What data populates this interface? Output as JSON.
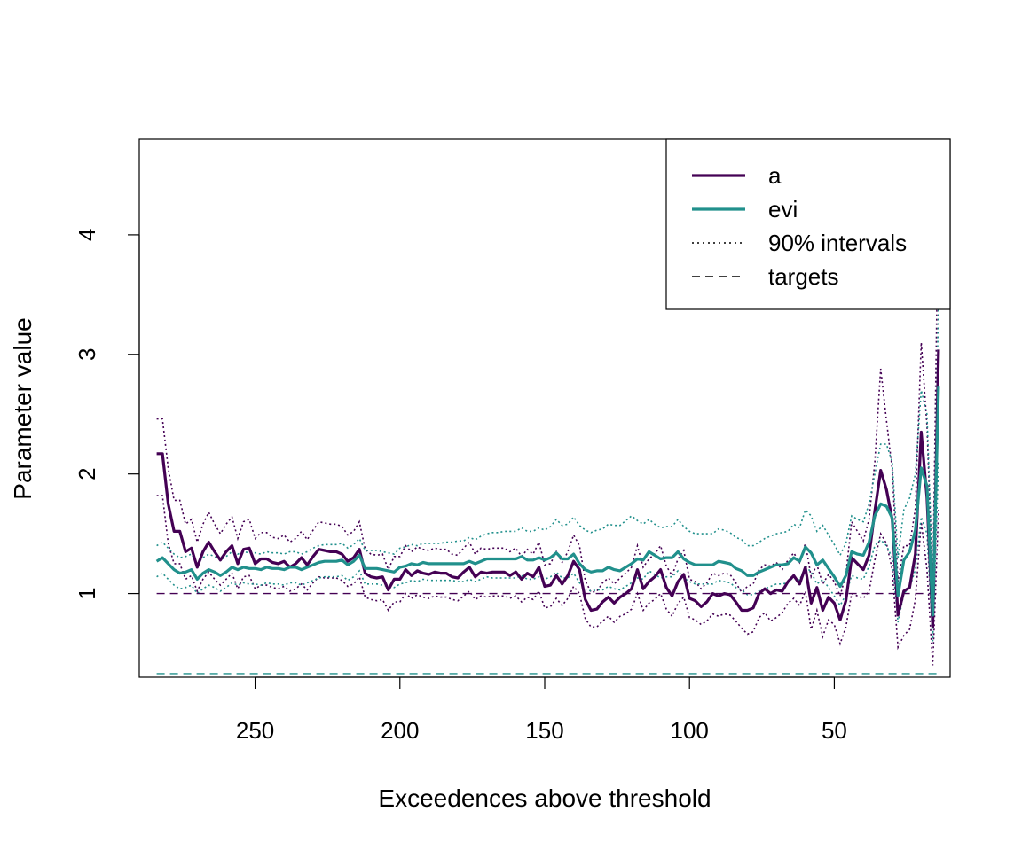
{
  "chart_data": {
    "type": "line",
    "title": "",
    "xlabel": "Exceedences above threshold",
    "ylabel": "Parameter value",
    "xlim": [
      290,
      10
    ],
    "ylim": [
      0.3,
      4.8
    ],
    "x_ticks": [
      250,
      200,
      150,
      100,
      50
    ],
    "y_ticks": [
      1,
      2,
      3,
      4
    ],
    "x": [
      284,
      282,
      280,
      278,
      276,
      274,
      272,
      270,
      268,
      266,
      264,
      262,
      260,
      258,
      256,
      254,
      252,
      250,
      248,
      246,
      244,
      242,
      240,
      238,
      236,
      234,
      232,
      230,
      228,
      226,
      224,
      222,
      220,
      218,
      216,
      214,
      212,
      210,
      208,
      206,
      204,
      202,
      200,
      198,
      196,
      194,
      192,
      190,
      188,
      186,
      184,
      182,
      180,
      178,
      176,
      174,
      172,
      170,
      168,
      166,
      164,
      162,
      160,
      158,
      156,
      154,
      152,
      150,
      148,
      146,
      144,
      142,
      140,
      138,
      136,
      134,
      132,
      130,
      128,
      126,
      124,
      122,
      120,
      118,
      116,
      114,
      112,
      110,
      108,
      106,
      104,
      102,
      100,
      98,
      96,
      94,
      92,
      90,
      88,
      86,
      84,
      82,
      80,
      78,
      76,
      74,
      72,
      70,
      68,
      66,
      64,
      62,
      60,
      58,
      56,
      54,
      52,
      50,
      48,
      46,
      44,
      42,
      40,
      38,
      36,
      34,
      32,
      30,
      28,
      26,
      24,
      22,
      20,
      18,
      16,
      14
    ],
    "series": [
      {
        "name": "a",
        "color": "#440154",
        "style": "solid",
        "values": [
          2.17,
          2.17,
          1.75,
          1.52,
          1.52,
          1.35,
          1.38,
          1.22,
          1.35,
          1.43,
          1.35,
          1.28,
          1.35,
          1.4,
          1.25,
          1.37,
          1.38,
          1.25,
          1.29,
          1.29,
          1.26,
          1.25,
          1.27,
          1.22,
          1.25,
          1.3,
          1.24,
          1.31,
          1.37,
          1.36,
          1.35,
          1.35,
          1.33,
          1.27,
          1.3,
          1.37,
          1.17,
          1.14,
          1.13,
          1.14,
          1.03,
          1.12,
          1.12,
          1.2,
          1.15,
          1.19,
          1.17,
          1.16,
          1.18,
          1.17,
          1.17,
          1.14,
          1.13,
          1.18,
          1.22,
          1.14,
          1.18,
          1.17,
          1.18,
          1.18,
          1.18,
          1.15,
          1.18,
          1.12,
          1.17,
          1.14,
          1.22,
          1.06,
          1.07,
          1.15,
          1.08,
          1.15,
          1.27,
          1.2,
          0.95,
          0.86,
          0.87,
          0.93,
          0.97,
          0.92,
          0.97,
          1.0,
          1.04,
          1.2,
          1.04,
          1.1,
          1.14,
          1.2,
          1.05,
          0.98,
          1.1,
          1.16,
          0.96,
          0.94,
          0.89,
          0.93,
          1.0,
          0.98,
          1.0,
          0.99,
          0.93,
          0.86,
          0.86,
          0.88,
          1.0,
          1.04,
          1.0,
          1.03,
          1.02,
          1.1,
          1.15,
          1.08,
          1.22,
          0.92,
          1.05,
          0.86,
          0.97,
          0.92,
          0.78,
          0.94,
          1.3,
          1.25,
          1.2,
          1.32,
          1.69,
          2.03,
          1.87,
          1.62,
          0.82,
          1.02,
          1.05,
          1.33,
          2.35,
          1.8,
          0.72,
          3.04
        ]
      },
      {
        "name": "evi",
        "color": "#21908C",
        "style": "solid",
        "values": [
          1.27,
          1.3,
          1.25,
          1.2,
          1.17,
          1.18,
          1.2,
          1.12,
          1.17,
          1.2,
          1.18,
          1.15,
          1.18,
          1.22,
          1.2,
          1.22,
          1.21,
          1.21,
          1.2,
          1.22,
          1.21,
          1.21,
          1.2,
          1.22,
          1.22,
          1.2,
          1.22,
          1.24,
          1.26,
          1.27,
          1.27,
          1.27,
          1.28,
          1.24,
          1.27,
          1.32,
          1.21,
          1.21,
          1.21,
          1.2,
          1.19,
          1.18,
          1.22,
          1.23,
          1.25,
          1.24,
          1.26,
          1.25,
          1.25,
          1.25,
          1.25,
          1.25,
          1.25,
          1.25,
          1.27,
          1.25,
          1.27,
          1.29,
          1.29,
          1.29,
          1.29,
          1.29,
          1.29,
          1.31,
          1.28,
          1.28,
          1.3,
          1.28,
          1.3,
          1.34,
          1.29,
          1.29,
          1.33,
          1.25,
          1.2,
          1.18,
          1.19,
          1.19,
          1.22,
          1.2,
          1.19,
          1.22,
          1.25,
          1.29,
          1.28,
          1.35,
          1.32,
          1.29,
          1.3,
          1.3,
          1.35,
          1.29,
          1.26,
          1.24,
          1.24,
          1.24,
          1.24,
          1.27,
          1.26,
          1.25,
          1.21,
          1.19,
          1.15,
          1.15,
          1.18,
          1.2,
          1.22,
          1.24,
          1.24,
          1.25,
          1.3,
          1.27,
          1.39,
          1.34,
          1.24,
          1.28,
          1.21,
          1.14,
          1.06,
          1.15,
          1.35,
          1.33,
          1.32,
          1.43,
          1.65,
          1.75,
          1.73,
          1.63,
          0.98,
          1.28,
          1.35,
          1.53,
          2.05,
          1.9,
          0.82,
          2.73
        ]
      },
      {
        "name": "90% intervals",
        "color": "#000000",
        "style": "dotted"
      },
      {
        "name": "targets",
        "color": "#000000",
        "style": "dashed"
      }
    ],
    "targets": [
      {
        "series": "a",
        "value": 1.0,
        "color": "#440154"
      },
      {
        "series": "evi",
        "value": 0.33,
        "color": "#21908C"
      }
    ],
    "intervals": {
      "a": {
        "lower": [
          1.82,
          1.82,
          1.42,
          1.25,
          1.25,
          1.12,
          1.15,
          1.02,
          1.12,
          1.18,
          1.12,
          1.07,
          1.12,
          1.17,
          1.04,
          1.14,
          1.15,
          1.04,
          1.07,
          1.07,
          1.05,
          1.04,
          1.06,
          1.02,
          1.04,
          1.08,
          1.03,
          1.09,
          1.14,
          1.13,
          1.13,
          1.13,
          1.11,
          1.06,
          1.08,
          1.14,
          0.97,
          0.95,
          0.94,
          0.95,
          0.86,
          0.93,
          0.93,
          1.0,
          0.96,
          0.99,
          0.97,
          0.96,
          0.98,
          0.97,
          0.97,
          0.95,
          0.94,
          0.98,
          1.02,
          0.95,
          0.98,
          0.97,
          0.98,
          0.98,
          0.98,
          0.96,
          0.98,
          0.93,
          0.97,
          0.95,
          1.02,
          0.88,
          0.89,
          0.96,
          0.9,
          0.96,
          1.06,
          1.0,
          0.79,
          0.72,
          0.72,
          0.77,
          0.81,
          0.76,
          0.81,
          0.83,
          0.87,
          1.0,
          0.86,
          0.92,
          0.95,
          1.0,
          0.87,
          0.81,
          0.92,
          0.97,
          0.8,
          0.78,
          0.74,
          0.77,
          0.83,
          0.81,
          0.83,
          0.82,
          0.77,
          0.71,
          0.66,
          0.68,
          0.8,
          0.84,
          0.77,
          0.8,
          0.84,
          0.92,
          0.96,
          0.9,
          1.02,
          0.7,
          0.86,
          0.64,
          0.78,
          0.74,
          0.58,
          0.72,
          1.0,
          0.98,
          0.96,
          1.02,
          1.28,
          1.5,
          1.42,
          1.2,
          0.55,
          0.65,
          0.7,
          0.95,
          1.6,
          1.2,
          0.4,
          1.7
        ],
        "upper": [
          2.46,
          2.46,
          2.05,
          1.78,
          1.78,
          1.58,
          1.62,
          1.43,
          1.58,
          1.68,
          1.58,
          1.5,
          1.58,
          1.64,
          1.46,
          1.6,
          1.62,
          1.46,
          1.51,
          1.51,
          1.47,
          1.46,
          1.49,
          1.43,
          1.46,
          1.52,
          1.45,
          1.53,
          1.6,
          1.59,
          1.58,
          1.58,
          1.56,
          1.49,
          1.52,
          1.6,
          1.37,
          1.33,
          1.32,
          1.33,
          1.2,
          1.31,
          1.31,
          1.4,
          1.35,
          1.39,
          1.37,
          1.36,
          1.38,
          1.37,
          1.37,
          1.33,
          1.32,
          1.38,
          1.43,
          1.33,
          1.38,
          1.37,
          1.38,
          1.38,
          1.38,
          1.35,
          1.38,
          1.31,
          1.37,
          1.33,
          1.43,
          1.24,
          1.25,
          1.35,
          1.26,
          1.35,
          1.49,
          1.4,
          1.11,
          1.01,
          1.02,
          1.09,
          1.13,
          1.08,
          1.13,
          1.17,
          1.22,
          1.4,
          1.22,
          1.29,
          1.33,
          1.4,
          1.23,
          1.15,
          1.29,
          1.36,
          1.12,
          1.1,
          1.04,
          1.09,
          1.17,
          1.15,
          1.17,
          1.16,
          1.09,
          1.01,
          1.06,
          1.08,
          1.2,
          1.24,
          1.23,
          1.26,
          1.2,
          1.28,
          1.34,
          1.26,
          1.42,
          1.14,
          1.24,
          1.08,
          1.16,
          1.1,
          0.98,
          1.16,
          1.6,
          1.52,
          1.44,
          1.62,
          2.1,
          2.88,
          2.45,
          2.04,
          1.1,
          1.4,
          1.4,
          1.71,
          3.1,
          2.4,
          1.04,
          4.38
        ]
      },
      "evi": {
        "lower": [
          1.14,
          1.17,
          1.12,
          1.07,
          1.04,
          1.05,
          1.07,
          1.0,
          1.04,
          1.07,
          1.05,
          1.02,
          1.05,
          1.09,
          1.07,
          1.09,
          1.08,
          1.08,
          1.07,
          1.09,
          1.08,
          1.08,
          1.07,
          1.09,
          1.09,
          1.07,
          1.09,
          1.11,
          1.13,
          1.14,
          1.14,
          1.14,
          1.15,
          1.11,
          1.14,
          1.19,
          1.08,
          1.08,
          1.08,
          1.07,
          1.06,
          1.05,
          1.08,
          1.09,
          1.11,
          1.1,
          1.12,
          1.11,
          1.11,
          1.11,
          1.11,
          1.11,
          1.1,
          1.1,
          1.12,
          1.1,
          1.12,
          1.14,
          1.13,
          1.13,
          1.13,
          1.13,
          1.13,
          1.15,
          1.12,
          1.12,
          1.14,
          1.12,
          1.14,
          1.18,
          1.13,
          1.13,
          1.17,
          1.09,
          1.04,
          1.02,
          1.03,
          1.03,
          1.06,
          1.04,
          1.03,
          1.06,
          1.09,
          1.13,
          1.12,
          1.19,
          1.16,
          1.13,
          1.14,
          1.14,
          1.19,
          1.13,
          1.1,
          1.08,
          1.08,
          1.08,
          1.08,
          1.11,
          1.1,
          1.09,
          1.05,
          1.03,
          0.99,
          0.99,
          1.02,
          1.04,
          1.06,
          1.08,
          1.08,
          1.09,
          1.14,
          1.11,
          1.23,
          1.18,
          1.08,
          1.12,
          1.05,
          0.98,
          0.9,
          0.99,
          1.15,
          1.13,
          1.12,
          1.23,
          1.4,
          1.45,
          1.4,
          1.3,
          0.76,
          1.0,
          1.05,
          1.2,
          1.64,
          1.5,
          0.6,
          2.1
        ],
        "upper": [
          1.4,
          1.43,
          1.38,
          1.33,
          1.3,
          1.31,
          1.33,
          1.25,
          1.3,
          1.33,
          1.31,
          1.28,
          1.31,
          1.35,
          1.33,
          1.35,
          1.34,
          1.34,
          1.33,
          1.35,
          1.34,
          1.34,
          1.33,
          1.35,
          1.35,
          1.33,
          1.35,
          1.38,
          1.4,
          1.41,
          1.41,
          1.41,
          1.42,
          1.38,
          1.41,
          1.46,
          1.36,
          1.36,
          1.36,
          1.35,
          1.34,
          1.33,
          1.38,
          1.39,
          1.41,
          1.4,
          1.42,
          1.42,
          1.42,
          1.42,
          1.43,
          1.43,
          1.44,
          1.44,
          1.47,
          1.45,
          1.48,
          1.5,
          1.51,
          1.51,
          1.52,
          1.52,
          1.52,
          1.55,
          1.52,
          1.52,
          1.55,
          1.53,
          1.56,
          1.62,
          1.57,
          1.58,
          1.64,
          1.57,
          1.53,
          1.51,
          1.53,
          1.54,
          1.58,
          1.57,
          1.57,
          1.61,
          1.65,
          1.61,
          1.58,
          1.62,
          1.58,
          1.55,
          1.56,
          1.56,
          1.62,
          1.56,
          1.52,
          1.5,
          1.5,
          1.5,
          1.5,
          1.54,
          1.53,
          1.51,
          1.47,
          1.45,
          1.4,
          1.4,
          1.43,
          1.46,
          1.48,
          1.5,
          1.51,
          1.52,
          1.58,
          1.55,
          1.7,
          1.65,
          1.52,
          1.57,
          1.49,
          1.41,
          1.32,
          1.42,
          1.65,
          1.62,
          1.6,
          1.75,
          2.0,
          2.25,
          2.25,
          2.1,
          1.3,
          1.7,
          1.8,
          2.0,
          2.7,
          2.5,
          1.1,
          3.4
        ]
      }
    },
    "legend": {
      "position": "top-right",
      "entries": [
        "a",
        "evi",
        "90% intervals",
        "targets"
      ]
    },
    "grid": false
  }
}
